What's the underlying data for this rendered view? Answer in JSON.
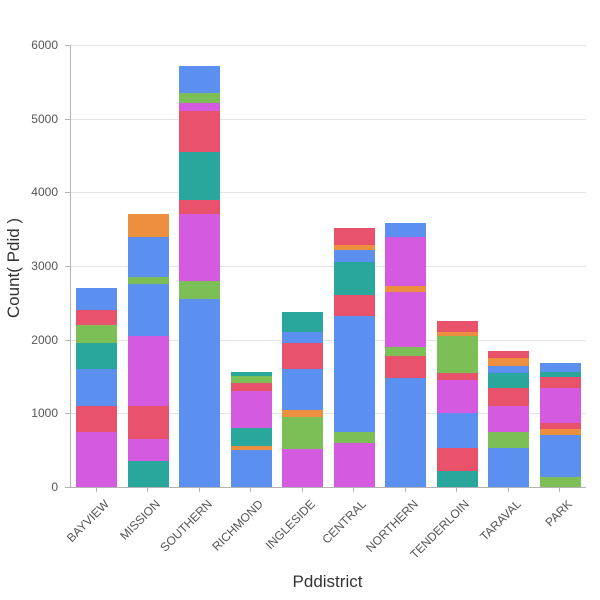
{
  "chart_data": {
    "type": "bar",
    "stacked": true,
    "title": "",
    "xlabel": "Pddistrict",
    "ylabel": "Count( Pdid )",
    "ylim": [
      0,
      6000
    ],
    "yticks": [
      0,
      1000,
      2000,
      3000,
      4000,
      5000,
      6000
    ],
    "grid": true,
    "legend": "none",
    "palette": {
      "blue": "#5b8ff0",
      "magenta": "#d45ae0",
      "teal": "#2aa79c",
      "red": "#e8536b",
      "green": "#7cbf56",
      "orange": "#ec8f3e"
    },
    "categories": [
      "BAYVIEW",
      "MISSION",
      "SOUTHERN",
      "RICHMOND",
      "INGLESIDE",
      "CENTRAL",
      "NORTHERN",
      "TENDERLOIN",
      "TARAVAL",
      "PARK"
    ],
    "bars": [
      {
        "category": "BAYVIEW",
        "total": 2700,
        "segments": [
          {
            "color": "magenta",
            "value": 750
          },
          {
            "color": "red",
            "value": 350
          },
          {
            "color": "blue",
            "value": 500
          },
          {
            "color": "teal",
            "value": 350
          },
          {
            "color": "green",
            "value": 250
          },
          {
            "color": "red",
            "value": 200
          },
          {
            "color": "blue",
            "value": 300
          }
        ]
      },
      {
        "category": "MISSION",
        "total": 3700,
        "segments": [
          {
            "color": "teal",
            "value": 350
          },
          {
            "color": "magenta",
            "value": 300
          },
          {
            "color": "red",
            "value": 450
          },
          {
            "color": "magenta",
            "value": 950
          },
          {
            "color": "blue",
            "value": 700
          },
          {
            "color": "green",
            "value": 100
          },
          {
            "color": "blue",
            "value": 550
          },
          {
            "color": "orange",
            "value": 300
          }
        ]
      },
      {
        "category": "SOUTHERN",
        "total": 5720,
        "segments": [
          {
            "color": "blue",
            "value": 2550
          },
          {
            "color": "green",
            "value": 250
          },
          {
            "color": "magenta",
            "value": 900
          },
          {
            "color": "red",
            "value": 200
          },
          {
            "color": "teal",
            "value": 650
          },
          {
            "color": "red",
            "value": 550
          },
          {
            "color": "magenta",
            "value": 120
          },
          {
            "color": "green",
            "value": 130
          },
          {
            "color": "blue",
            "value": 370
          }
        ]
      },
      {
        "category": "RICHMOND",
        "total": 1560,
        "segments": [
          {
            "color": "blue",
            "value": 500
          },
          {
            "color": "orange",
            "value": 60
          },
          {
            "color": "teal",
            "value": 240
          },
          {
            "color": "magenta",
            "value": 500
          },
          {
            "color": "red",
            "value": 110
          },
          {
            "color": "green",
            "value": 100
          },
          {
            "color": "teal",
            "value": 50
          }
        ]
      },
      {
        "category": "INGLESIDE",
        "total": 2380,
        "segments": [
          {
            "color": "magenta",
            "value": 520
          },
          {
            "color": "green",
            "value": 430
          },
          {
            "color": "orange",
            "value": 100
          },
          {
            "color": "blue",
            "value": 550
          },
          {
            "color": "red",
            "value": 350
          },
          {
            "color": "blue",
            "value": 150
          },
          {
            "color": "teal",
            "value": 280
          }
        ]
      },
      {
        "category": "CENTRAL",
        "total": 3520,
        "segments": [
          {
            "color": "magenta",
            "value": 600
          },
          {
            "color": "green",
            "value": 150
          },
          {
            "color": "blue",
            "value": 1570
          },
          {
            "color": "red",
            "value": 280
          },
          {
            "color": "teal",
            "value": 450
          },
          {
            "color": "blue",
            "value": 170
          },
          {
            "color": "orange",
            "value": 60
          },
          {
            "color": "red",
            "value": 240
          }
        ]
      },
      {
        "category": "NORTHERN",
        "total": 3580,
        "segments": [
          {
            "color": "blue",
            "value": 1480
          },
          {
            "color": "red",
            "value": 300
          },
          {
            "color": "green",
            "value": 120
          },
          {
            "color": "magenta",
            "value": 750
          },
          {
            "color": "orange",
            "value": 80
          },
          {
            "color": "magenta",
            "value": 670
          },
          {
            "color": "blue",
            "value": 180
          }
        ]
      },
      {
        "category": "TENDERLOIN",
        "total": 2260,
        "segments": [
          {
            "color": "teal",
            "value": 220
          },
          {
            "color": "red",
            "value": 310
          },
          {
            "color": "blue",
            "value": 470
          },
          {
            "color": "magenta",
            "value": 450
          },
          {
            "color": "red",
            "value": 100
          },
          {
            "color": "green",
            "value": 500
          },
          {
            "color": "orange",
            "value": 60
          },
          {
            "color": "red",
            "value": 150
          }
        ]
      },
      {
        "category": "TARAVAL",
        "total": 1850,
        "segments": [
          {
            "color": "blue",
            "value": 530
          },
          {
            "color": "green",
            "value": 220
          },
          {
            "color": "magenta",
            "value": 350
          },
          {
            "color": "red",
            "value": 250
          },
          {
            "color": "teal",
            "value": 200
          },
          {
            "color": "blue",
            "value": 100
          },
          {
            "color": "orange",
            "value": 100
          },
          {
            "color": "red",
            "value": 100
          }
        ]
      },
      {
        "category": "PARK",
        "total": 1680,
        "segments": [
          {
            "color": "green",
            "value": 140
          },
          {
            "color": "blue",
            "value": 560
          },
          {
            "color": "orange",
            "value": 90
          },
          {
            "color": "red",
            "value": 80
          },
          {
            "color": "magenta",
            "value": 480
          },
          {
            "color": "red",
            "value": 150
          },
          {
            "color": "teal",
            "value": 60
          },
          {
            "color": "blue",
            "value": 120
          }
        ]
      }
    ]
  }
}
